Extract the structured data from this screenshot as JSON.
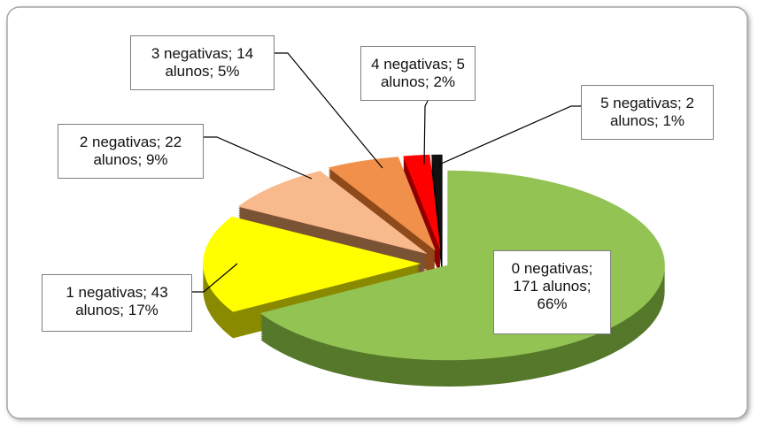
{
  "chart_data": {
    "type": "pie3d",
    "values": [
      171,
      43,
      22,
      14,
      5,
      2
    ],
    "value_labels": [
      "0 negativas; 171 alunos; 66%",
      "1 negativas; 43 alunos; 17%",
      "2 negativas; 22 alunos; 9%",
      "3 negativas; 14 alunos; 5%",
      "4 negativas; 5 alunos; 2%",
      "5 negativas; 2 alunos; 1%"
    ],
    "colors": [
      "#92c353",
      "#ffff00",
      "#f8b98c",
      "#f0904a",
      "#ff0000",
      "#111111"
    ],
    "side_colors": [
      "#55782a",
      "#8a8a00",
      "#7a5234",
      "#8e4a1a",
      "#8e0000",
      "#000000"
    ]
  }
}
